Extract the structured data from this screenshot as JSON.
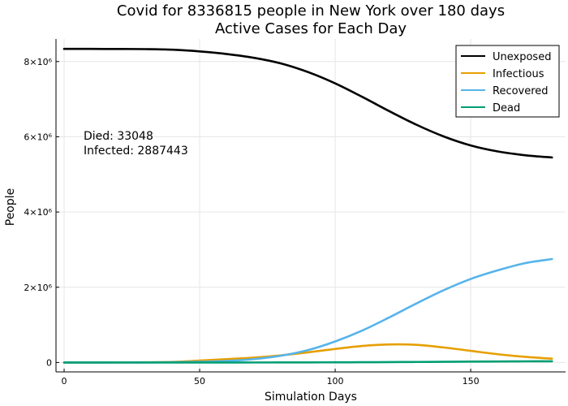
{
  "chart_data": {
    "type": "line",
    "title": "Covid for 8336815 people in New York over 180 days",
    "subtitle": "Active Cases for Each Day",
    "xlabel": "Simulation Days",
    "ylabel": "People",
    "xlim": [
      -3,
      185
    ],
    "ylim": [
      -250000,
      8600000
    ],
    "x_ticks": [
      0,
      50,
      100,
      150
    ],
    "x_tick_labels": [
      "0",
      "50",
      "100",
      "150"
    ],
    "y_ticks": [
      0,
      2000000,
      4000000,
      6000000,
      8000000
    ],
    "y_tick_labels": [
      "0",
      "2×10⁶",
      "4×10⁶",
      "6×10⁶",
      "8×10⁶"
    ],
    "grid": true,
    "legend_position": "top-right",
    "annotations": [
      "Died: 33048",
      "Infected: 2887443"
    ],
    "x": [
      0,
      10,
      20,
      30,
      40,
      50,
      60,
      70,
      80,
      90,
      100,
      110,
      120,
      130,
      140,
      150,
      160,
      170,
      180
    ],
    "series": [
      {
        "name": "Unexposed",
        "color": "#000000",
        "values": [
          8336815,
          8336000,
          8334000,
          8330000,
          8315000,
          8270000,
          8200000,
          8100000,
          7950000,
          7720000,
          7420000,
          7060000,
          6680000,
          6320000,
          6010000,
          5770000,
          5610000,
          5510000,
          5450000
        ]
      },
      {
        "name": "Infectious",
        "color": "#e69f00",
        "values": [
          0,
          0,
          2000,
          5000,
          15000,
          50000,
          90000,
          130000,
          190000,
          270000,
          360000,
          440000,
          480000,
          470000,
          400000,
          310000,
          220000,
          150000,
          100000
        ]
      },
      {
        "name": "Recovered",
        "color": "#56b4e9",
        "values": [
          0,
          0,
          1000,
          3000,
          8000,
          18000,
          40000,
          90000,
          180000,
          330000,
          560000,
          850000,
          1200000,
          1570000,
          1920000,
          2220000,
          2450000,
          2640000,
          2750000
        ]
      },
      {
        "name": "Dead",
        "color": "#009e73",
        "values": [
          0,
          0,
          0,
          0,
          0,
          100,
          300,
          800,
          1500,
          2800,
          4500,
          7000,
          10500,
          14500,
          19000,
          23500,
          27500,
          30800,
          33048
        ]
      }
    ]
  }
}
